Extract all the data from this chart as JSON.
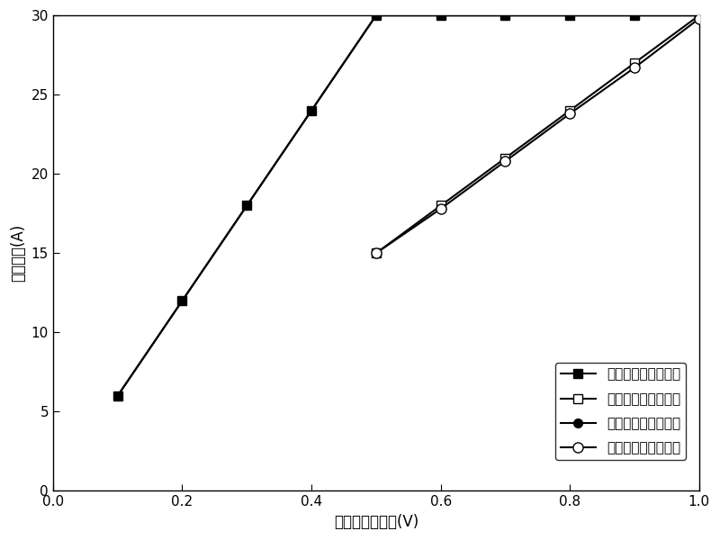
{
  "carrier_ideal_x": [
    0.1,
    0.2,
    0.3,
    0.4,
    0.5,
    0.6,
    0.7,
    0.8,
    0.9,
    1.0
  ],
  "carrier_ideal_y": [
    6,
    12,
    18,
    24,
    30,
    30,
    30,
    30,
    30,
    30
  ],
  "peaking_ideal_x": [
    0.5,
    0.6,
    0.7,
    0.8,
    0.9,
    1.0
  ],
  "peaking_ideal_y": [
    15,
    18,
    21,
    24,
    27,
    30
  ],
  "carrier_actual_x": [
    0.1,
    0.2,
    0.3,
    0.4,
    0.5,
    0.6,
    0.7,
    0.8,
    0.9,
    1.0
  ],
  "carrier_actual_y": [
    6,
    12,
    18,
    24,
    30,
    30,
    30,
    30,
    30,
    30
  ],
  "peaking_actual_x": [
    0.5,
    0.6,
    0.7,
    0.8,
    0.9,
    1.0
  ],
  "peaking_actual_y": [
    15,
    17.8,
    20.8,
    23.8,
    26.7,
    29.8
  ],
  "xlabel": "规格化输入电压(V)",
  "ylabel": "基波电流(A)",
  "legend1": "载波放大器（理想）",
  "legend2": "峰化放大器（理想）",
  "legend3": "载波放大器（实际）",
  "legend4": "峰化放大器（实际）",
  "xlim": [
    0.0,
    1.0
  ],
  "ylim": [
    0,
    30
  ],
  "xticks": [
    0.0,
    0.2,
    0.4,
    0.6,
    0.8,
    1.0
  ],
  "yticks": [
    0,
    5,
    10,
    15,
    20,
    25,
    30
  ],
  "line_color": "#000000",
  "background_color": "#ffffff"
}
